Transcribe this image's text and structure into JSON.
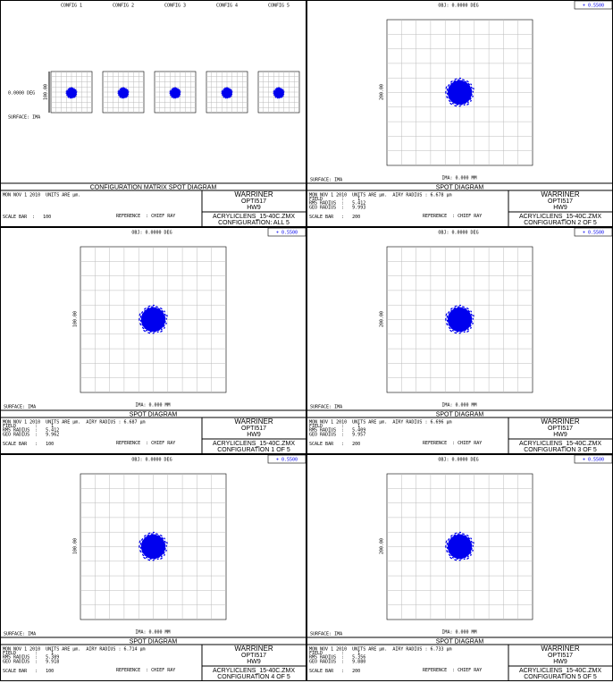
{
  "panels": [
    {
      "kind": "matrix",
      "configs": [
        "CONFIG 1",
        "CONFIG 2",
        "CONFIG 3",
        "CONFIG 4",
        "CONFIG 5"
      ],
      "field_label": "0.0000 DEG",
      "surface": "SURFACE: IMA",
      "scale_label": "100.00",
      "title": "CONFIGURATION MATRIX SPOT DIAGRAM",
      "info": [
        "MON NOV 1 2010  UNITS ARE µm.",
        "",
        "",
        "",
        "SCALE BAR  :   100"
      ],
      "reference": "REFERENCE  : CHIEF RAY",
      "box": [
        "WARRINER",
        "OPTI517",
        "HW9",
        "ACRYLICLENS_15-40C.ZMX",
        "CONFIGURATION: ALL 5"
      ]
    },
    {
      "kind": "spot",
      "obj": "OBJ: 0.0000 DEG",
      "legend": "+ 0.5500",
      "scale_label": "200.00",
      "surface": "SURFACE: IMA",
      "ima": "IMA: 0.000 MM",
      "title": "SPOT DIAGRAM",
      "info": [
        "MON NOV 1 2010  UNITS ARE µm.  AIRY RADIUS : 6.678 µm",
        "FIELD       :     1",
        "RMS RADIUS  :   5.412",
        "GEO RADIUS  :   9.993",
        "SCALE BAR   :   200"
      ],
      "reference": "REFERENCE  : CHIEF RAY",
      "box": [
        "WARRINER",
        "OPTI517",
        "HW9",
        "ACRYLICLENS_15-40C.ZMX",
        "CONFIGURATION 2 OF 5"
      ]
    },
    {
      "kind": "spot",
      "obj": "OBJ: 0.0000 DEG",
      "legend": "+ 0.5500",
      "scale_label": "100.00",
      "surface": "SURFACE: IMA",
      "ima": "IMA: 0.000 MM",
      "title": "SPOT DIAGRAM",
      "info": [
        "MON NOV 1 2010  UNITS ARE µm.  AIRY RADIUS : 6.687 µm",
        "FIELD       :     1",
        "RMS RADIUS  :   5.412",
        "GEO RADIUS  :   9.962",
        "SCALE BAR   :   100"
      ],
      "reference": "REFERENCE  : CHIEF RAY",
      "box": [
        "WARRINER",
        "OPTI517",
        "HW9",
        "ACRYLICLENS_15-40C.ZMX",
        "CONFIGURATION 1 OF 5"
      ]
    },
    {
      "kind": "spot",
      "obj": "OBJ: 0.0000 DEG",
      "legend": "+ 0.5500",
      "scale_label": "200.00",
      "surface": "SURFACE: IMA",
      "ima": "IMA: 0.000 MM",
      "title": "SPOT DIAGRAM",
      "info": [
        "MON NOV 1 2010  UNITS ARE µm.  AIRY RADIUS : 6.696 µm",
        "FIELD       :     1",
        "RMS RADIUS  :   5.409",
        "GEO RADIUS  :   9.957",
        "SCALE BAR   :   200"
      ],
      "reference": "REFERENCE  : CHIEF RAY",
      "box": [
        "WARRINER",
        "OPTI517",
        "HW9",
        "ACRYLICLENS_15-40C.ZMX",
        "CONFIGURATION 3 OF 5"
      ]
    },
    {
      "kind": "spot",
      "obj": "OBJ: 0.0000 DEG",
      "legend": "+ 0.5500",
      "scale_label": "100.00",
      "surface": "SURFACE: IMA",
      "ima": "IMA: 0.000 MM",
      "title": "SPOT DIAGRAM",
      "info": [
        "MON NOV 1 2010  UNITS ARE µm.  AIRY RADIUS : 6.714 µm",
        "FIELD       :     1",
        "RMS RADIUS  :   5.389",
        "GEO RADIUS  :   9.918",
        "SCALE BAR   :   100"
      ],
      "reference": "REFERENCE  : CHIEF RAY",
      "box": [
        "WARRINER",
        "OPTI517",
        "HW9",
        "ACRYLICLENS_15-40C.ZMX",
        "CONFIGURATION 4 OF 5"
      ]
    },
    {
      "kind": "spot",
      "obj": "OBJ: 0.0000 DEG",
      "legend": "+ 0.5500",
      "scale_label": "200.00",
      "surface": "SURFACE: IMA",
      "ima": "IMA: 0.000 MM",
      "title": "SPOT DIAGRAM",
      "info": [
        "MON NOV 1 2010  UNITS ARE µm.  AIRY RADIUS : 6.733 µm",
        "FIELD       :     1",
        "RMS RADIUS  :   5.356",
        "GEO RADIUS  :   9.880",
        "SCALE BAR   :   200"
      ],
      "reference": "REFERENCE  : CHIEF RAY",
      "box": [
        "WARRINER",
        "OPTI517",
        "HW9",
        "ACRYLICLENS_15-40C.ZMX",
        "CONFIGURATION 5 OF 5"
      ]
    }
  ]
}
